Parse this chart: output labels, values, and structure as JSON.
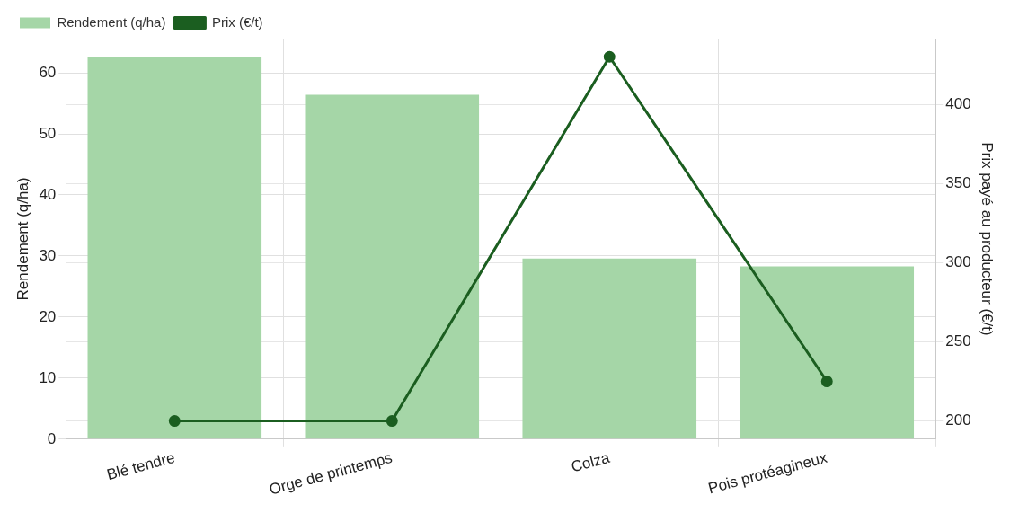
{
  "chart_data": {
    "type": "bar",
    "categories": [
      "Blé tendre",
      "Orge de printemps",
      "Colza",
      "Pois protéagineux"
    ],
    "series": [
      {
        "name": "Rendement (q/ha)",
        "color": "#a5d6a7",
        "values": [
          62.5,
          56.4,
          29.6,
          28.3
        ]
      },
      {
        "name": "Prix (€/t)",
        "type": "line",
        "axis": "y2",
        "color": "#1b5e20",
        "values": [
          200,
          200,
          430,
          225
        ]
      }
    ],
    "ylabel": "Rendement (q/ha)",
    "y2label": "Prix payé au producteur (€/t)",
    "ylim": [
      0,
      65.6
    ],
    "yticks": [
      0,
      10,
      20,
      30,
      40,
      50,
      60
    ],
    "y2lim": [
      188.5,
      441.5
    ],
    "y2ticks": [
      200,
      250,
      300,
      350,
      400
    ],
    "grid": true,
    "legend": "top left",
    "marker": "circle",
    "line_style": "solid"
  }
}
